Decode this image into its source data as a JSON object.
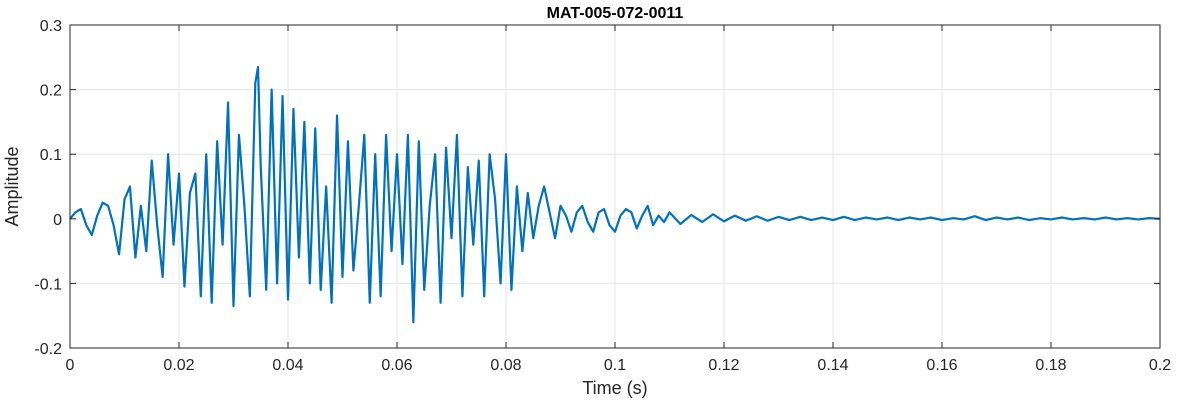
{
  "chart_data": {
    "type": "line",
    "title": "MAT-005-072-0011",
    "xlabel": "Time (s)",
    "ylabel": "Amplitude",
    "xlim": [
      0,
      0.2
    ],
    "ylim": [
      -0.2,
      0.3
    ],
    "grid": true,
    "legend": "none",
    "xticks": [
      0,
      0.02,
      0.04,
      0.06,
      0.08,
      0.1,
      0.12,
      0.14,
      0.16,
      0.18,
      0.2
    ],
    "xtick_labels": [
      "0",
      "0.02",
      "0.04",
      "0.06",
      "0.08",
      "0.1",
      "0.12",
      "0.14",
      "0.16",
      "0.18",
      "0.2"
    ],
    "yticks": [
      -0.2,
      -0.1,
      0,
      0.1,
      0.2,
      0.3
    ],
    "ytick_labels": [
      "-0.2",
      "-0.1",
      "0",
      "0.1",
      "0.2",
      "0.3"
    ],
    "colors": {
      "line": "#0072BD",
      "grid": "#E6E6E6",
      "axis": "#262626"
    },
    "series": [
      {
        "x": [
          0,
          0.001,
          0.002,
          0.003,
          0.004,
          0.005,
          0.006,
          0.007,
          0.008,
          0.009,
          0.01,
          0.011,
          0.012,
          0.013,
          0.014,
          0.015,
          0.016,
          0.017,
          0.018,
          0.019,
          0.02,
          0.021,
          0.022,
          0.023,
          0.024,
          0.025,
          0.026,
          0.027,
          0.028,
          0.029,
          0.03,
          0.031,
          0.032,
          0.033,
          0.034,
          0.0345,
          0.035,
          0.036,
          0.037,
          0.038,
          0.039,
          0.04,
          0.041,
          0.042,
          0.043,
          0.044,
          0.045,
          0.046,
          0.047,
          0.048,
          0.049,
          0.05,
          0.051,
          0.052,
          0.053,
          0.054,
          0.055,
          0.056,
          0.057,
          0.058,
          0.059,
          0.06,
          0.061,
          0.062,
          0.063,
          0.064,
          0.065,
          0.066,
          0.067,
          0.068,
          0.069,
          0.07,
          0.071,
          0.072,
          0.073,
          0.074,
          0.075,
          0.076,
          0.077,
          0.078,
          0.079,
          0.08,
          0.081,
          0.082,
          0.083,
          0.084,
          0.085,
          0.086,
          0.087,
          0.088,
          0.089,
          0.09,
          0.091,
          0.092,
          0.093,
          0.094,
          0.095,
          0.096,
          0.097,
          0.098,
          0.099,
          0.1,
          0.101,
          0.102,
          0.103,
          0.104,
          0.105,
          0.106,
          0.107,
          0.108,
          0.109,
          0.11,
          0.112,
          0.114,
          0.116,
          0.118,
          0.12,
          0.122,
          0.124,
          0.126,
          0.128,
          0.13,
          0.132,
          0.134,
          0.136,
          0.138,
          0.14,
          0.142,
          0.144,
          0.146,
          0.148,
          0.15,
          0.152,
          0.154,
          0.156,
          0.158,
          0.16,
          0.162,
          0.164,
          0.166,
          0.168,
          0.17,
          0.172,
          0.174,
          0.176,
          0.178,
          0.18,
          0.182,
          0.184,
          0.186,
          0.188,
          0.19,
          0.192,
          0.194,
          0.196,
          0.198,
          0.2
        ],
        "y": [
          0,
          0.01,
          0.015,
          -0.01,
          -0.025,
          0.005,
          0.025,
          0.02,
          -0.01,
          -0.055,
          0.03,
          0.05,
          -0.06,
          0.02,
          -0.05,
          0.09,
          -0.01,
          -0.09,
          0.1,
          -0.04,
          0.07,
          -0.105,
          0.04,
          0.07,
          -0.12,
          0.1,
          -0.13,
          0.12,
          -0.04,
          0.18,
          -0.135,
          0.13,
          0.02,
          -0.12,
          0.21,
          0.235,
          0.08,
          -0.11,
          0.2,
          -0.1,
          0.19,
          -0.125,
          0.17,
          -0.06,
          0.15,
          -0.1,
          0.14,
          -0.11,
          0.05,
          -0.13,
          0.16,
          -0.09,
          0.12,
          -0.08,
          0.02,
          0.13,
          -0.13,
          0.1,
          -0.12,
          0.13,
          -0.05,
          0.1,
          -0.07,
          0.13,
          -0.16,
          0.12,
          -0.11,
          0.02,
          0.1,
          -0.13,
          0.11,
          -0.03,
          0.13,
          -0.12,
          0.08,
          -0.04,
          0.09,
          -0.12,
          0.1,
          0.03,
          -0.1,
          0.1,
          -0.11,
          0.05,
          -0.05,
          0.04,
          -0.03,
          0.02,
          0.05,
          0.01,
          -0.03,
          0.02,
          0.005,
          -0.02,
          0.01,
          0.02,
          -0.005,
          -0.02,
          0.01,
          0.015,
          -0.01,
          -0.02,
          0.005,
          0.015,
          0.01,
          -0.015,
          0.005,
          0.02,
          -0.01,
          0.005,
          -0.005,
          0.01,
          -0.008,
          0.006,
          -0.005,
          0.007,
          -0.004,
          0.005,
          -0.003,
          0.004,
          -0.003,
          0.003,
          -0.002,
          0.003,
          -0.002,
          0.002,
          -0.002,
          0.003,
          -0.002,
          0.002,
          -0.001,
          0.002,
          -0.002,
          0.002,
          -0.001,
          0.002,
          -0.002,
          0.001,
          -0.001,
          0.004,
          -0.002,
          0.002,
          -0.001,
          0.002,
          -0.002,
          0.001,
          -0.001,
          0.002,
          -0.001,
          0.001,
          -0.001,
          0.002,
          -0.001,
          0.001,
          -0.001,
          0.001,
          0
        ]
      }
    ]
  }
}
